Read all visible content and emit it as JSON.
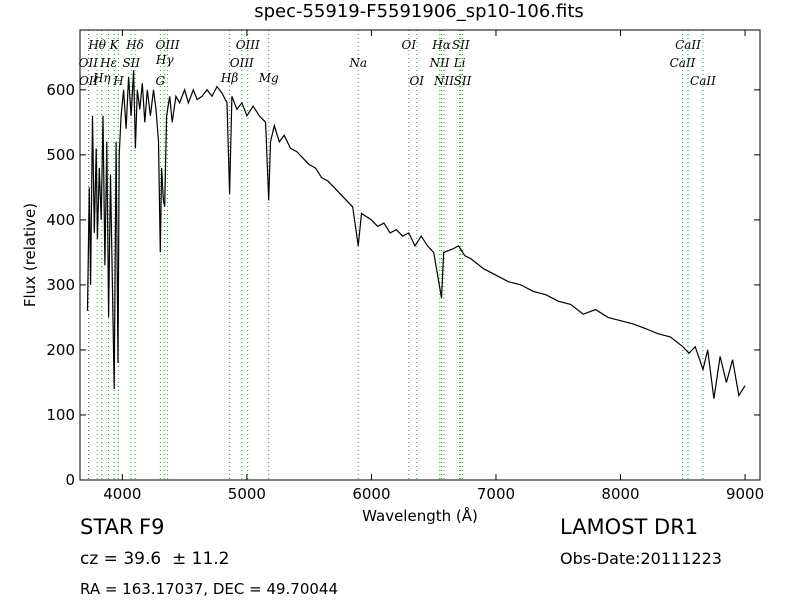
{
  "chart_data": {
    "type": "line",
    "title": "spec-55919-F5591906_sp10-106.fits",
    "x_label": "Wavelength (Å)",
    "y_label": "Flux (relative)",
    "xlim": [
      3660,
      9120
    ],
    "xticks": [
      4000,
      5000,
      6000,
      7000,
      8000,
      9000
    ],
    "ylim": [
      0,
      692
    ],
    "yticks": [
      0,
      100,
      200,
      300,
      400,
      500,
      600
    ],
    "grid": false,
    "x": [
      3720,
      3735,
      3745,
      3760,
      3775,
      3790,
      3800,
      3815,
      3830,
      3845,
      3860,
      3875,
      3890,
      3905,
      3920,
      3935,
      3950,
      3965,
      3975,
      3990,
      4010,
      4030,
      4050,
      4070,
      4090,
      4105,
      4120,
      4140,
      4160,
      4180,
      4200,
      4225,
      4250,
      4270,
      4290,
      4305,
      4315,
      4330,
      4340,
      4355,
      4380,
      4400,
      4430,
      4460,
      4500,
      4530,
      4570,
      4600,
      4640,
      4680,
      4720,
      4760,
      4800,
      4840,
      4861,
      4880,
      4920,
      4960,
      5000,
      5050,
      5100,
      5150,
      5175,
      5190,
      5220,
      5260,
      5300,
      5350,
      5400,
      5450,
      5500,
      5550,
      5600,
      5650,
      5700,
      5750,
      5800,
      5850,
      5894,
      5920,
      6000,
      6050,
      6100,
      6150,
      6200,
      6250,
      6300,
      6350,
      6400,
      6450,
      6500,
      6563,
      6580,
      6650,
      6700,
      6750,
      6800,
      6900,
      7000,
      7100,
      7200,
      7300,
      7400,
      7500,
      7600,
      7700,
      7800,
      7900,
      8000,
      8100,
      8200,
      8300,
      8400,
      8500,
      8550,
      8600,
      8662,
      8700,
      8750,
      8800,
      8850,
      8900,
      8950,
      9000
    ],
    "series": [
      {
        "name": "flux",
        "color": "#000000",
        "values": [
          260,
          450,
          300,
          560,
          380,
          510,
          370,
          480,
          400,
          560,
          330,
          520,
          250,
          470,
          300,
          140,
          520,
          180,
          500,
          560,
          600,
          540,
          620,
          560,
          630,
          510,
          600,
          570,
          610,
          550,
          600,
          560,
          600,
          570,
          520,
          350,
          480,
          430,
          420,
          560,
          590,
          550,
          590,
          580,
          600,
          580,
          600,
          585,
          590,
          600,
          590,
          605,
          595,
          580,
          440,
          590,
          570,
          580,
          560,
          575,
          560,
          550,
          430,
          520,
          545,
          520,
          530,
          510,
          505,
          495,
          485,
          480,
          465,
          460,
          450,
          440,
          430,
          420,
          360,
          410,
          400,
          390,
          395,
          380,
          385,
          375,
          380,
          360,
          375,
          360,
          350,
          280,
          350,
          355,
          360,
          345,
          340,
          325,
          315,
          305,
          300,
          290,
          285,
          275,
          270,
          255,
          262,
          250,
          245,
          240,
          233,
          225,
          220,
          205,
          195,
          205,
          170,
          200,
          125,
          190,
          150,
          185,
          130,
          145
        ]
      }
    ],
    "line_color": "#2ca02c",
    "spectral_lines": [
      {
        "label": "OII",
        "wavelength": 3727
      },
      {
        "label": "OII",
        "wavelength": 3729
      },
      {
        "label": "Hθ",
        "wavelength": 3798
      },
      {
        "label": "Hη",
        "wavelength": 3835
      },
      {
        "label": "Hε",
        "wavelength": 3889
      },
      {
        "label": "K",
        "wavelength": 3934
      },
      {
        "label": "H",
        "wavelength": 3969
      },
      {
        "label": "SII",
        "wavelength": 4072
      },
      {
        "label": "Hδ",
        "wavelength": 4102
      },
      {
        "label": "G",
        "wavelength": 4305
      },
      {
        "label": "Hγ",
        "wavelength": 4340
      },
      {
        "label": "OIII",
        "wavelength": 4363
      },
      {
        "label": "Hβ",
        "wavelength": 4861
      },
      {
        "label": "OIII",
        "wavelength": 4959
      },
      {
        "label": "OIII",
        "wavelength": 5007
      },
      {
        "label": "Mg",
        "wavelength": 5175
      },
      {
        "label": "Na",
        "wavelength": 5894
      },
      {
        "label": "OI",
        "wavelength": 6300
      },
      {
        "label": "OI",
        "wavelength": 6364
      },
      {
        "label": "NII",
        "wavelength": 6548
      },
      {
        "label": "Hα",
        "wavelength": 6563
      },
      {
        "label": "NII",
        "wavelength": 6583
      },
      {
        "label": "Li",
        "wavelength": 6708
      },
      {
        "label": "SII",
        "wavelength": 6717
      },
      {
        "label": "SII",
        "wavelength": 6731
      },
      {
        "label": "CaII",
        "wavelength": 8498
      },
      {
        "label": "CaII",
        "wavelength": 8542
      },
      {
        "label": "CaII",
        "wavelength": 8662
      }
    ],
    "object_class": "STAR",
    "subclass": "F9",
    "redshift": "cz = 39.6  ± 11.2",
    "coordinates": "RA = 163.17037, DEC = 49.70044",
    "survey": "LAMOST DR1",
    "obs_date": "Obs-Date:20111223"
  }
}
